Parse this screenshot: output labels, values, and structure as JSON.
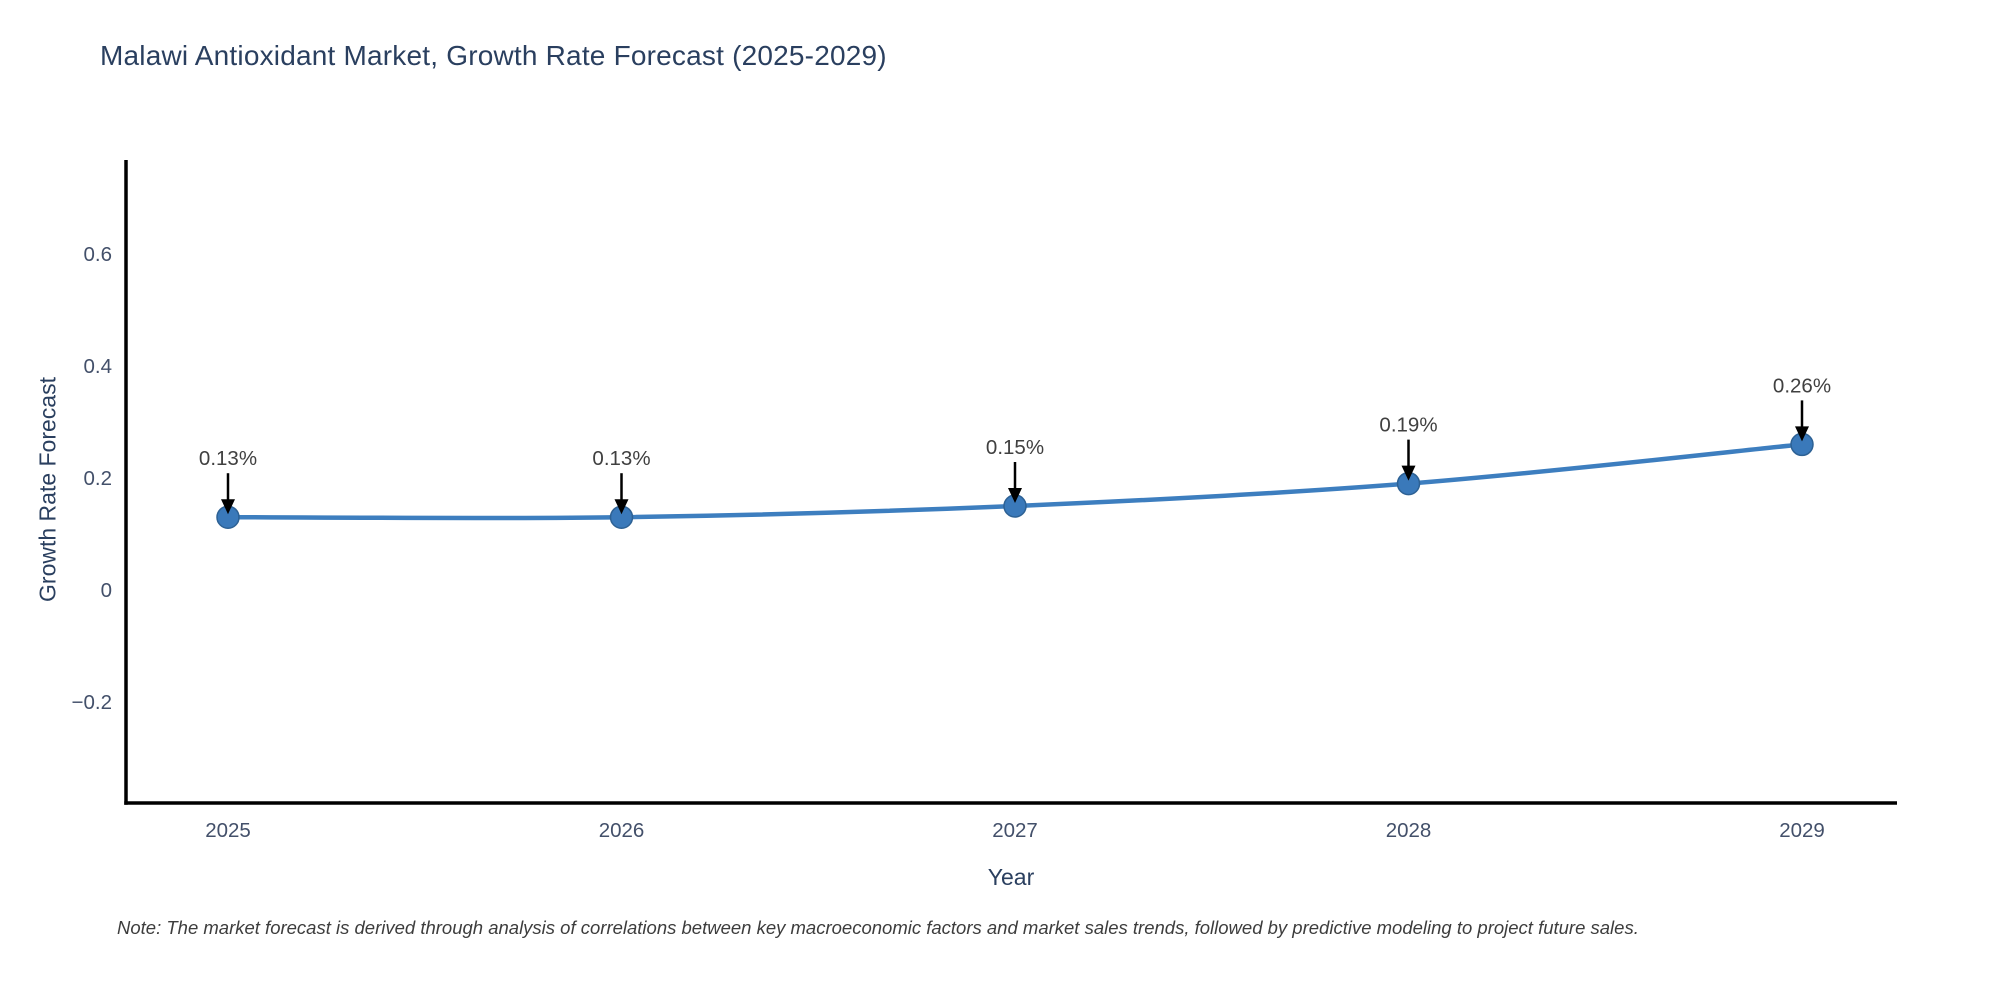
{
  "title": "Malawi Antioxidant Market, Growth Rate Forecast (2025-2029)",
  "note": "Note: The market forecast is derived through analysis of correlations between key macroeconomic factors and market sales trends, followed by predictive modeling to project future sales.",
  "chart_data": {
    "type": "line",
    "title": "Malawi Antioxidant Market, Growth Rate Forecast (2025-2029)",
    "xlabel": "Year",
    "ylabel": "Growth Rate Forecast",
    "x": [
      2025,
      2026,
      2027,
      2028,
      2029
    ],
    "series": [
      {
        "name": "Growth Rate Forecast",
        "values": [
          0.13,
          0.13,
          0.15,
          0.19,
          0.26
        ]
      }
    ],
    "point_labels": [
      "0.13%",
      "0.13%",
      "0.15%",
      "0.19%",
      "0.26%"
    ],
    "yticks": [
      0.6,
      0.4,
      0.2,
      0,
      -0.2
    ],
    "yticklabels": [
      "0.6",
      "0.4",
      "0.2",
      "0",
      "−0.2"
    ],
    "ylim": [
      -0.384,
      0.768
    ],
    "grid": false,
    "legend": "none",
    "colors": {
      "line": "#3d7ebf",
      "marker_fill": "#3a79ba",
      "marker_edge": "#2d6194",
      "axis": "#000000",
      "tick_text": "#43506a",
      "annotation_text": "#404040",
      "arrow": "#000000"
    }
  }
}
